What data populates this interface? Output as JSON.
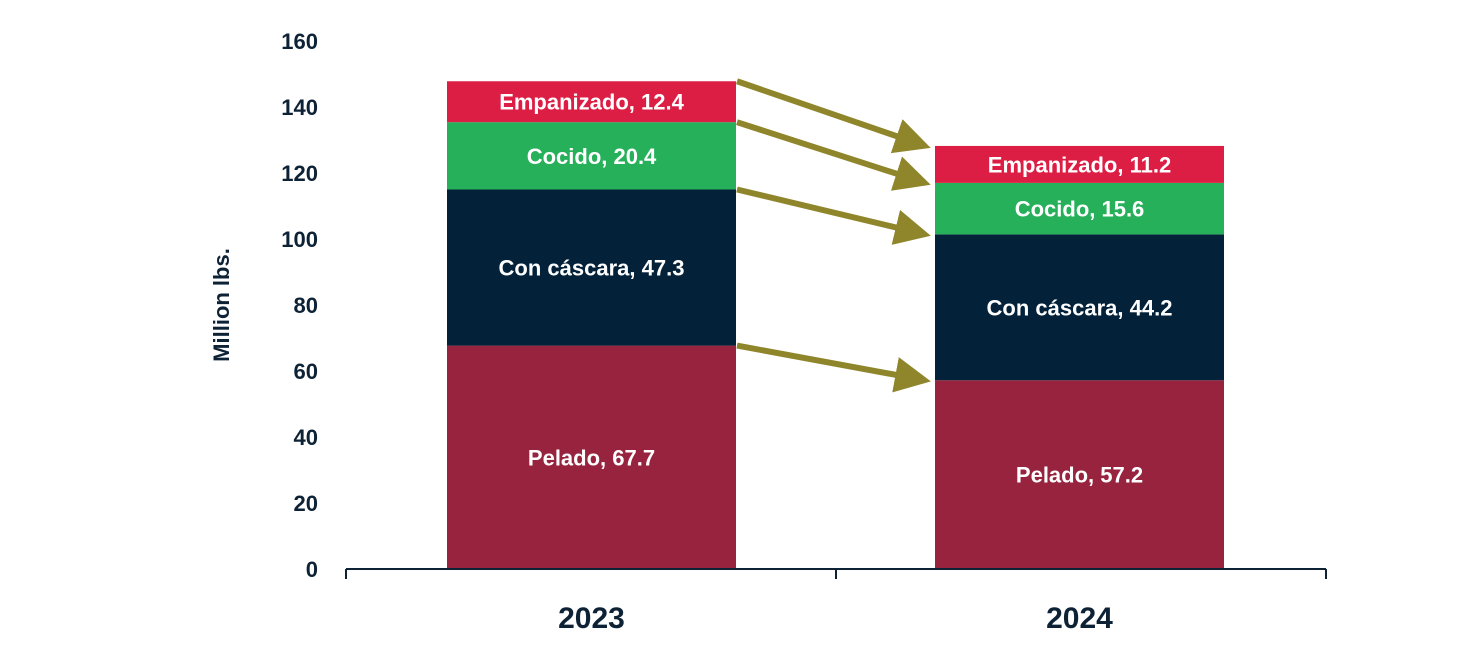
{
  "chart_data": {
    "type": "bar",
    "stacked": true,
    "ylabel": "Million lbs.",
    "ylim": [
      0,
      160
    ],
    "yticks": [
      0,
      20,
      40,
      60,
      80,
      100,
      120,
      140,
      160
    ],
    "categories": [
      "2023",
      "2024"
    ],
    "series": [
      {
        "name": "Pelado",
        "values": [
          67.7,
          57.2
        ],
        "labels": [
          "Pelado, 67.7",
          "Pelado, 57.2"
        ],
        "color": "#97233f"
      },
      {
        "name": "Con cáscara",
        "values": [
          47.3,
          44.2
        ],
        "labels": [
          "Con cáscara, 47.3",
          "Con cáscara, 44.2"
        ],
        "color": "#03223a"
      },
      {
        "name": "Cocido",
        "values": [
          20.4,
          15.6
        ],
        "labels": [
          "Cocido, 20.4",
          "Cocido, 15.6"
        ],
        "color": "#26b05a"
      },
      {
        "name": "Empanizado",
        "values": [
          12.4,
          11.2
        ],
        "labels": [
          "Empanizado, 12.4",
          "Empanizado, 11.2"
        ],
        "color": "#dc1e45"
      }
    ],
    "arrow_color": "#8f862c",
    "grid": false,
    "legend": "none"
  }
}
